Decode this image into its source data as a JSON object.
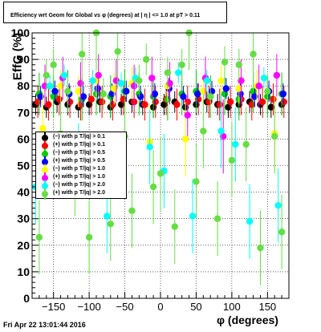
{
  "title": "Efficiency wrt Geom for Global vs φ (degrees) at | η | <= 1.0 at pT > 0.11",
  "footer": "Fri Apr 22 13:01:44 2016",
  "legend": [
    {
      "label": "(−) with p T/|q| > 0.1",
      "color": "#000000"
    },
    {
      "label": "(+) with p T/|q| > 0.1",
      "color": "#ff0000"
    },
    {
      "label": "(−) with p T/|q| > 0.5",
      "color": "#00cc00"
    },
    {
      "label": "(+) with p T/|q| > 0.5",
      "color": "#0000ff"
    },
    {
      "label": "(−) with p T/|q| > 1.0",
      "color": "#ffff00"
    },
    {
      "label": "(+) with p T/|q| > 1.0",
      "color": "#ff00ff"
    },
    {
      "label": "(−) with p T/|q| > 2.0",
      "color": "#00ffff"
    },
    {
      "label": "(+) with p T/|q| > 2.0",
      "color": "#66dd44"
    }
  ],
  "chart_data": {
    "type": "scatter",
    "title": "Efficiency wrt Geom for Global vs φ (degrees) at | η | <= 1.0 at pT > 0.11",
    "xlabel": "φ (degrees)",
    "ylabel": "EffG (%)",
    "xlim": [
      -180,
      180
    ],
    "ylim": [
      0,
      100
    ],
    "x_ticks": [
      -150,
      -100,
      -50,
      0,
      50,
      100,
      150
    ],
    "y_ticks": [
      0,
      10,
      20,
      30,
      40,
      50,
      60,
      70,
      80,
      90,
      100
    ],
    "grid": true,
    "legend_position": "left-middle",
    "series": [
      {
        "name": "(−) with p T/|q| > 0.1",
        "color": "#000000",
        "x": [
          -175,
          -160,
          -145,
          -130,
          -115,
          -100,
          -85,
          -70,
          -55,
          -40,
          -25,
          -10,
          5,
          20,
          35,
          50,
          65,
          80,
          95,
          110,
          125,
          140,
          155,
          170
        ],
        "y": [
          73,
          72,
          74,
          73,
          72,
          73,
          74,
          72,
          73,
          74,
          73,
          72,
          73,
          74,
          72,
          73,
          74,
          73,
          72,
          73,
          74,
          73,
          72,
          73
        ]
      },
      {
        "name": "(+) with p T/|q| > 0.1",
        "color": "#ff0000",
        "x": [
          -172,
          -157,
          -142,
          -127,
          -112,
          -97,
          -82,
          -67,
          -52,
          -37,
          -22,
          -7,
          8,
          23,
          38,
          53,
          68,
          83,
          98,
          113,
          128,
          143,
          158,
          173
        ],
        "y": [
          74,
          73,
          75,
          74,
          73,
          75,
          74,
          73,
          75,
          74,
          73,
          74,
          75,
          73,
          74,
          75,
          74,
          73,
          74,
          75,
          73,
          74,
          75,
          74
        ]
      },
      {
        "name": "(−) with p T/|q| > 0.5",
        "color": "#00cc00",
        "x": [
          -170,
          -150,
          -130,
          -110,
          -90,
          -70,
          -50,
          -30,
          -10,
          10,
          30,
          50,
          70,
          90,
          110,
          130,
          150,
          170
        ],
        "y": [
          77,
          76,
          78,
          75,
          77,
          76,
          78,
          77,
          76,
          75,
          77,
          78,
          76,
          77,
          75,
          78,
          76,
          77
        ]
      },
      {
        "name": "(+) with p T/|q| > 0.5",
        "color": "#0000ff",
        "x": [
          -168,
          -148,
          -128,
          -108,
          -88,
          -68,
          -48,
          -28,
          -8,
          12,
          32,
          52,
          72,
          92,
          112,
          132,
          152,
          172
        ],
        "y": [
          76,
          78,
          77,
          76,
          79,
          77,
          78,
          76,
          77,
          79,
          76,
          77,
          78,
          79,
          77,
          76,
          78,
          77
        ]
      },
      {
        "name": "(−) with p T/|q| > 1.0",
        "color": "#ffff00",
        "x": [
          -165,
          -140,
          -115,
          -90,
          -65,
          -40,
          -15,
          10,
          35,
          60,
          85,
          110,
          135,
          160
        ],
        "y": [
          64,
          80,
          78,
          82,
          79,
          81,
          59,
          80,
          60,
          78,
          82,
          79,
          80,
          62
        ]
      },
      {
        "name": "(+) with p T/|q| > 1.0",
        "color": "#ff00ff",
        "x": [
          -162,
          -137,
          -112,
          -87,
          -62,
          -37,
          -12,
          13,
          38,
          63,
          88,
          113,
          138,
          163
        ],
        "y": [
          80,
          83,
          81,
          84,
          82,
          80,
          83,
          81,
          69,
          83,
          61,
          82,
          80,
          84
        ]
      },
      {
        "name": "(−) with p T/|q| > 2.0",
        "color": "#00ffff",
        "x": [
          -175,
          -155,
          -135,
          -115,
          -95,
          -75,
          -55,
          -35,
          -15,
          5,
          25,
          45,
          65,
          85,
          105,
          125,
          145,
          165
        ],
        "y": [
          42,
          80,
          84,
          52,
          82,
          31,
          81,
          83,
          57,
          48,
          85,
          31,
          82,
          63,
          58,
          29,
          83,
          35
        ]
      },
      {
        "name": "(+) with p T/|q| > 2.0",
        "color": "#66dd44",
        "x": [
          -170,
          -160,
          -150,
          -140,
          -130,
          -120,
          -110,
          -100,
          -90,
          -80,
          -70,
          -60,
          -50,
          -40,
          -30,
          -20,
          -10,
          0,
          10,
          20,
          30,
          40,
          50,
          60,
          70,
          80,
          90,
          100,
          110,
          120,
          130,
          140,
          150,
          160,
          170
        ],
        "y": [
          23,
          84,
          88,
          62,
          78,
          45,
          92,
          23,
          100,
          77,
          28,
          93,
          61,
          33,
          82,
          90,
          42,
          47,
          85,
          27,
          88,
          100,
          44,
          63,
          76,
          30,
          89,
          52,
          88,
          58,
          92,
          19,
          78,
          61,
          25
        ]
      }
    ]
  }
}
